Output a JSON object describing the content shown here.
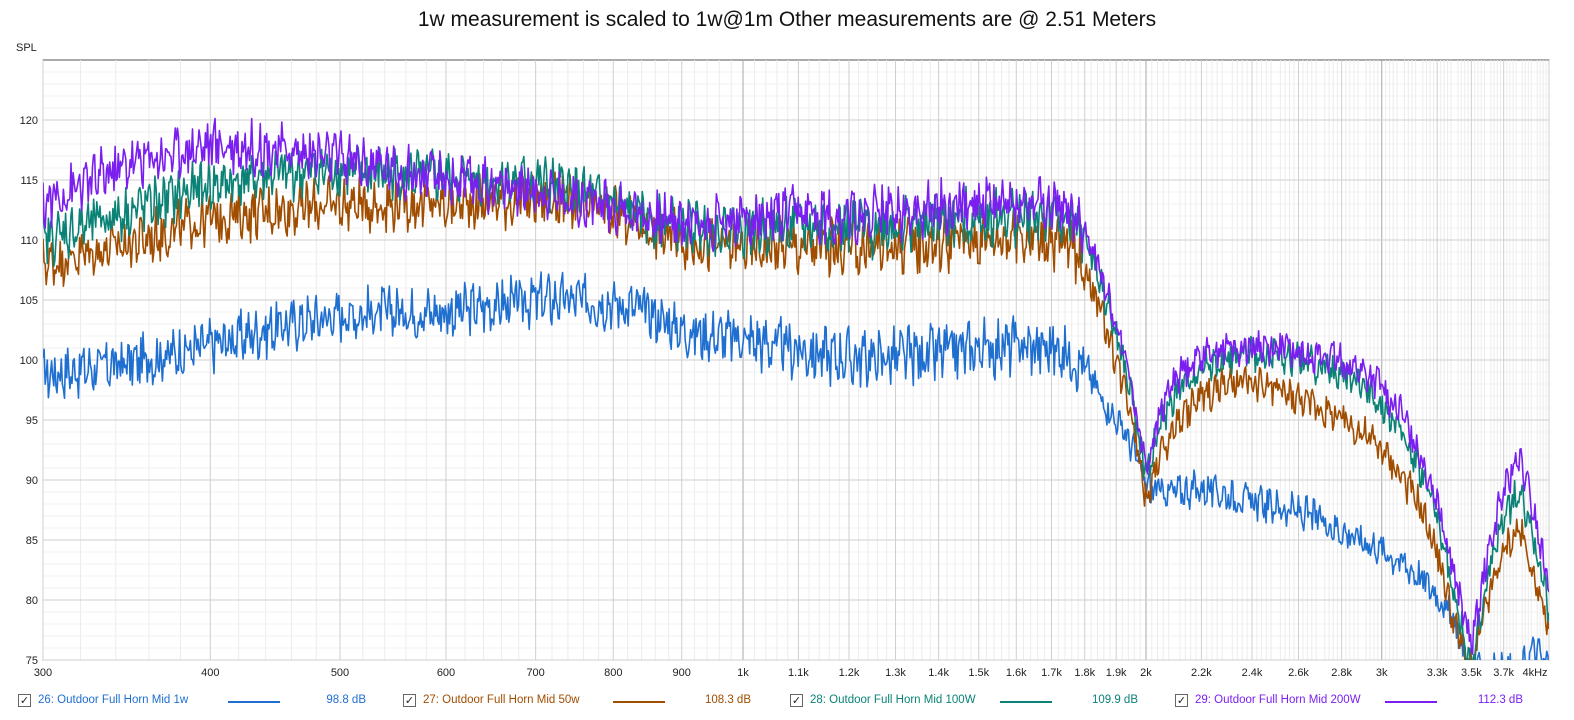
{
  "chart_data": {
    "type": "line",
    "title": "1w measurement is scaled to 1w@1m Other measurements are @ 2.51 Meters",
    "ylabel": "SPL",
    "xlabel": "",
    "x_scale": "log",
    "xlim": [
      300,
      4000
    ],
    "ylim": [
      75,
      125
    ],
    "grid": true,
    "x_ticks": [
      {
        "value": 300,
        "label": "300"
      },
      {
        "value": 400,
        "label": "400"
      },
      {
        "value": 500,
        "label": "500"
      },
      {
        "value": 600,
        "label": "600"
      },
      {
        "value": 700,
        "label": "700"
      },
      {
        "value": 800,
        "label": "800"
      },
      {
        "value": 900,
        "label": "900"
      },
      {
        "value": 1000,
        "label": "1k"
      },
      {
        "value": 1100,
        "label": "1.1k"
      },
      {
        "value": 1200,
        "label": "1.2k"
      },
      {
        "value": 1300,
        "label": "1.3k"
      },
      {
        "value": 1400,
        "label": "1.4k"
      },
      {
        "value": 1500,
        "label": "1.5k"
      },
      {
        "value": 1600,
        "label": "1.6k"
      },
      {
        "value": 1700,
        "label": "1.7k"
      },
      {
        "value": 1800,
        "label": "1.8k"
      },
      {
        "value": 1900,
        "label": "1.9k"
      },
      {
        "value": 2000,
        "label": "2k"
      },
      {
        "value": 2200,
        "label": "2.2k"
      },
      {
        "value": 2400,
        "label": "2.4k"
      },
      {
        "value": 2600,
        "label": "2.6k"
      },
      {
        "value": 2800,
        "label": "2.8k"
      },
      {
        "value": 3000,
        "label": "3k"
      },
      {
        "value": 3300,
        "label": "3.3k"
      },
      {
        "value": 3500,
        "label": "3.5k"
      },
      {
        "value": 3700,
        "label": "3.7k"
      },
      {
        "value": 4000,
        "label": "4kHz"
      }
    ],
    "y_ticks": [
      75,
      80,
      85,
      90,
      95,
      100,
      105,
      110,
      115,
      120
    ],
    "x": [
      300,
      350,
      400,
      450,
      500,
      550,
      600,
      650,
      700,
      750,
      800,
      850,
      900,
      950,
      1000,
      1100,
      1200,
      1300,
      1400,
      1500,
      1600,
      1700,
      1750,
      1800,
      1850,
      1900,
      1950,
      2000,
      2050,
      2100,
      2200,
      2300,
      2400,
      2500,
      2600,
      2700,
      2800,
      2900,
      3000,
      3100,
      3200,
      3300,
      3400,
      3500,
      3600,
      3700,
      3800,
      3900,
      4000
    ],
    "series": [
      {
        "name": "26: Outdoor Full Horn Mid 1w",
        "color": "#1f6fd1",
        "legend_value": "98.8 dB",
        "values": [
          98.8,
          99.8,
          101.2,
          102.8,
          103.8,
          104.0,
          104.0,
          104.5,
          105.0,
          105.0,
          104.8,
          104.0,
          102.5,
          102.0,
          101.8,
          100.8,
          100.2,
          100.2,
          100.5,
          101.0,
          101.2,
          101.0,
          100.5,
          99.5,
          97.0,
          95.0,
          93.0,
          89.5,
          89.0,
          89.0,
          89.3,
          88.8,
          88.2,
          87.8,
          87.3,
          86.7,
          85.8,
          85.0,
          84.2,
          83.2,
          82.0,
          80.5,
          78.0,
          74.0,
          74.0,
          74.0,
          74.0,
          76.0,
          74.5
        ]
      },
      {
        "name": "27: Outdoor Full Horn Mid 50w",
        "color": "#a04d00",
        "legend_value": "108.3 dB",
        "values": [
          108.0,
          109.8,
          111.8,
          112.5,
          113.0,
          113.0,
          113.0,
          113.2,
          113.5,
          113.0,
          112.3,
          111.0,
          110.0,
          109.5,
          109.5,
          109.5,
          109.3,
          109.6,
          109.8,
          110.2,
          110.5,
          110.0,
          109.5,
          108.0,
          104.0,
          100.0,
          96.0,
          88.5,
          92.0,
          94.5,
          97.0,
          98.0,
          98.0,
          97.5,
          96.8,
          96.0,
          95.0,
          94.0,
          92.5,
          90.5,
          88.0,
          84.0,
          78.0,
          74.0,
          80.0,
          84.0,
          86.0,
          82.0,
          77.0
        ]
      },
      {
        "name": "28: Outdoor Full Horn Mid 100W",
        "color": "#0b8276",
        "legend_value": "109.9 dB",
        "values": [
          110.0,
          112.5,
          114.5,
          115.5,
          115.8,
          115.5,
          115.2,
          115.0,
          114.8,
          114.0,
          113.0,
          111.8,
          111.2,
          111.0,
          111.0,
          111.2,
          111.0,
          111.2,
          111.5,
          111.8,
          112.0,
          112.0,
          111.5,
          110.2,
          106.5,
          102.0,
          97.0,
          90.5,
          94.5,
          97.0,
          99.5,
          100.0,
          100.5,
          100.3,
          100.0,
          99.5,
          98.8,
          98.0,
          96.5,
          94.0,
          91.0,
          87.0,
          80.0,
          74.0,
          82.0,
          87.0,
          89.0,
          85.0,
          79.0
        ]
      },
      {
        "name": "29: Outdoor Full Horn Mid 200W",
        "color": "#7a1ff0",
        "legend_value": "112.3 dB",
        "values": [
          113.0,
          116.5,
          118.0,
          117.5,
          116.8,
          115.8,
          115.0,
          114.5,
          114.2,
          113.5,
          112.8,
          112.0,
          111.5,
          111.5,
          111.8,
          112.0,
          112.0,
          112.3,
          112.8,
          113.0,
          113.0,
          112.8,
          112.3,
          111.0,
          107.5,
          103.0,
          98.0,
          91.0,
          95.5,
          98.5,
          100.5,
          101.0,
          101.3,
          101.0,
          100.8,
          100.3,
          99.8,
          99.0,
          97.8,
          95.5,
          92.5,
          88.5,
          82.0,
          76.0,
          84.0,
          89.0,
          92.0,
          87.0,
          81.0
        ]
      }
    ]
  }
}
